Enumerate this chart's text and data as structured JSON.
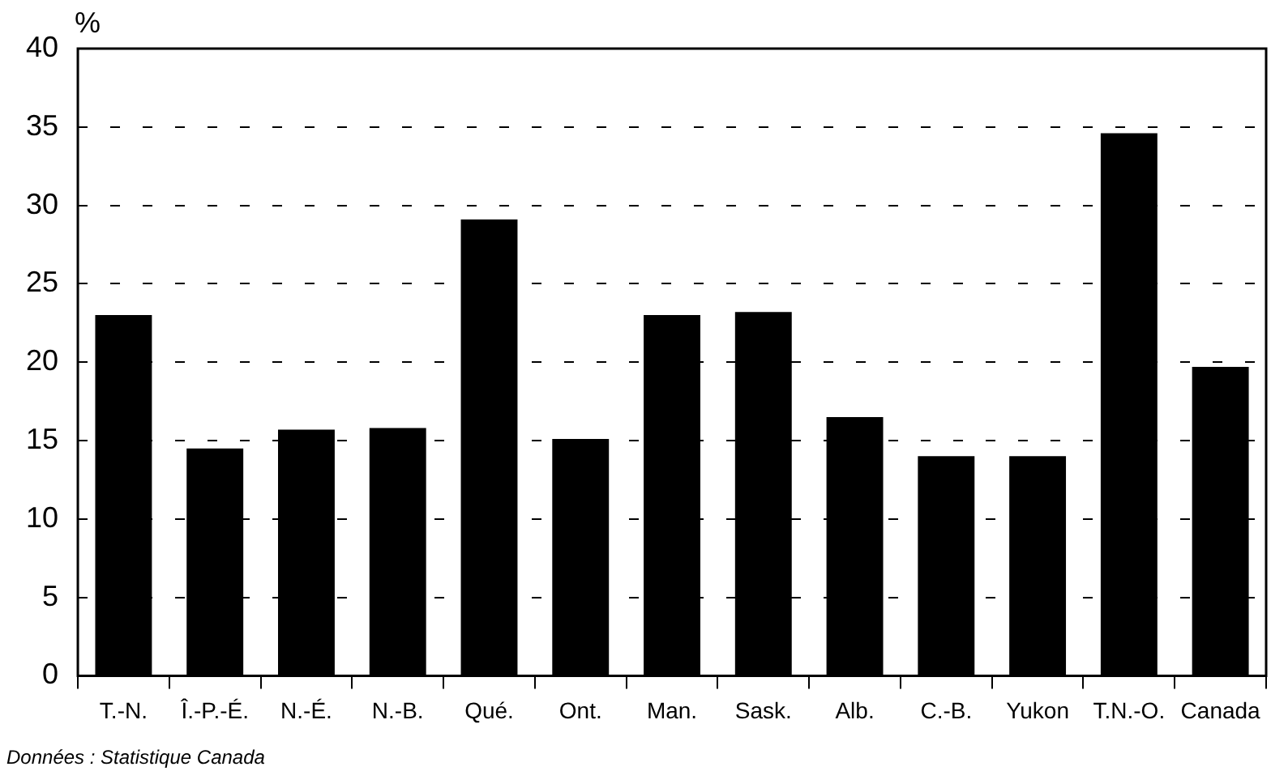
{
  "chart_data": {
    "type": "bar",
    "ylabel": "%",
    "annotations": [
      "Données : Statistique Canada"
    ],
    "categories": [
      "T.-N.",
      "Î.-P.-É.",
      "N.-É.",
      "N.-B.",
      "Qué.",
      "Ont.",
      "Man.",
      "Sask.",
      "Alb.",
      "C.-B.",
      "Yukon",
      "T.N.-O.",
      "Canada"
    ],
    "values": [
      23.0,
      14.5,
      15.7,
      15.8,
      29.1,
      15.1,
      23.0,
      23.2,
      16.5,
      14.0,
      14.0,
      34.6,
      19.7
    ],
    "color": "#000000",
    "ylim": [
      0,
      40
    ],
    "yticks": [
      0,
      5,
      10,
      15,
      20,
      25,
      30,
      35,
      40
    ],
    "grid": "y",
    "legend": false
  }
}
